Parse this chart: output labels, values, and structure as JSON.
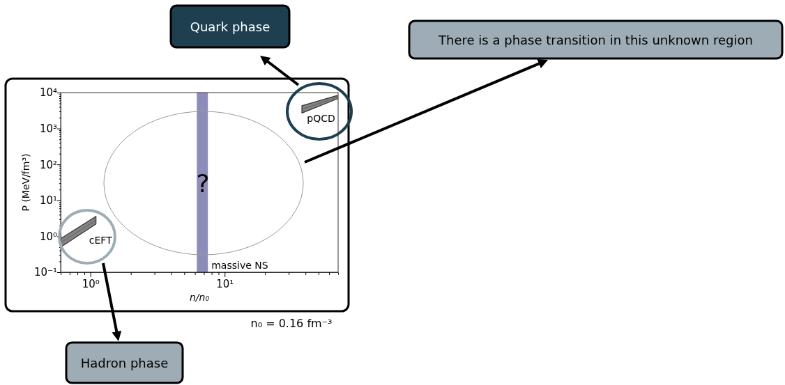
{
  "chart_data": {
    "type": "line",
    "xlabel": "n/n₀",
    "ylabel": "P (MeV/fm³)",
    "log": "xy",
    "xlim": [
      0.6,
      70
    ],
    "ylim": [
      0.1,
      10000
    ],
    "xticks": [
      {
        "value": 0.6,
        "label": null
      },
      {
        "value": 0.7,
        "label": null
      },
      {
        "value": 0.8,
        "label": null
      },
      {
        "value": 0.9,
        "label": null
      },
      {
        "value": 1,
        "label": "10⁰"
      },
      {
        "value": 2,
        "label": null
      },
      {
        "value": 3,
        "label": null
      },
      {
        "value": 4,
        "label": null
      },
      {
        "value": 5,
        "label": null
      },
      {
        "value": 6,
        "label": null
      },
      {
        "value": 7,
        "label": null
      },
      {
        "value": 8,
        "label": null
      },
      {
        "value": 9,
        "label": null
      },
      {
        "value": 10,
        "label": "10¹"
      },
      {
        "value": 20,
        "label": null
      },
      {
        "value": 30,
        "label": null
      },
      {
        "value": 40,
        "label": null
      },
      {
        "value": 50,
        "label": null
      },
      {
        "value": 60,
        "label": null
      }
    ],
    "yticks": [
      {
        "value": 0.1,
        "label": "10⁻¹"
      },
      {
        "value": 0.2,
        "label": null
      },
      {
        "value": 0.3,
        "label": null
      },
      {
        "value": 0.4,
        "label": null
      },
      {
        "value": 0.5,
        "label": null
      },
      {
        "value": 0.6,
        "label": null
      },
      {
        "value": 0.7,
        "label": null
      },
      {
        "value": 0.8,
        "label": null
      },
      {
        "value": 0.9,
        "label": null
      },
      {
        "value": 1,
        "label": "10⁰"
      },
      {
        "value": 2,
        "label": null
      },
      {
        "value": 3,
        "label": null
      },
      {
        "value": 4,
        "label": null
      },
      {
        "value": 5,
        "label": null
      },
      {
        "value": 6,
        "label": null
      },
      {
        "value": 7,
        "label": null
      },
      {
        "value": 8,
        "label": null
      },
      {
        "value": 9,
        "label": null
      },
      {
        "value": 10,
        "label": "10¹"
      },
      {
        "value": 20,
        "label": null
      },
      {
        "value": 30,
        "label": null
      },
      {
        "value": 40,
        "label": null
      },
      {
        "value": 50,
        "label": null
      },
      {
        "value": 60,
        "label": null
      },
      {
        "value": 70,
        "label": null
      },
      {
        "value": 80,
        "label": null
      },
      {
        "value": 90,
        "label": null
      },
      {
        "value": 100,
        "label": "10²"
      },
      {
        "value": 200,
        "label": null
      },
      {
        "value": 300,
        "label": null
      },
      {
        "value": 400,
        "label": null
      },
      {
        "value": 500,
        "label": null
      },
      {
        "value": 600,
        "label": null
      },
      {
        "value": 700,
        "label": null
      },
      {
        "value": 800,
        "label": null
      },
      {
        "value": 900,
        "label": null
      },
      {
        "value": 1000,
        "label": "10³"
      },
      {
        "value": 2000,
        "label": null
      },
      {
        "value": 3000,
        "label": null
      },
      {
        "value": 4000,
        "label": null
      },
      {
        "value": 5000,
        "label": null
      },
      {
        "value": 6000,
        "label": null
      },
      {
        "value": 7000,
        "label": null
      },
      {
        "value": 8000,
        "label": null
      },
      {
        "value": 9000,
        "label": null
      },
      {
        "value": 10000,
        "label": "10⁴"
      }
    ],
    "series": [
      {
        "name": "cEFT",
        "color": "#595959",
        "x": [
          0.6,
          1.1
        ],
        "values": [
          0.66,
          2.8
        ],
        "lower": [
          0.5,
          2.2
        ],
        "upper": [
          0.86,
          3.6
        ]
      },
      {
        "name": "pQCD",
        "color": "#595959",
        "x": [
          37.6,
          69
        ],
        "values": [
          3400,
          7500
        ],
        "lower": [
          2700,
          6700
        ],
        "upper": [
          4300,
          8300
        ]
      }
    ],
    "bands": [
      {
        "axis": "x",
        "from": 6.2,
        "to": 7.5,
        "label": "massive NS",
        "color": "#8e8cb8"
      }
    ],
    "annotations": [
      "?",
      "n₀ = 0.16 fm⁻³",
      "Quark phase",
      "There is a phase transition in this unknown region",
      "Hadron phase"
    ]
  }
}
